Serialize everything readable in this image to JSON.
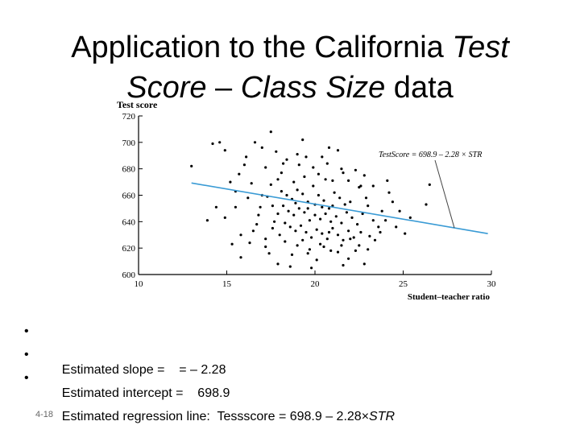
{
  "slide": {
    "title_part1": "Application to the California ",
    "title_italic1": "Test Score",
    "title_part2": " – ",
    "title_italic2": "Class Size",
    "title_part3": " data",
    "slide_number": "4-18"
  },
  "bullets": [
    {
      "marker": "•",
      "text": "Estimated slope =    = – 2.28"
    },
    {
      "marker": "•",
      "text": "Estimated intercept =    698.9"
    },
    {
      "marker": "•",
      "text": "Estimated regression line:  Tessscore = 698.9 – 2.28×",
      "italic": "STR"
    }
  ],
  "colors": {
    "regression_line": "#3a9bd5",
    "points": "#000000",
    "axis": "#000000",
    "annotation": "#444444"
  },
  "chart_data": {
    "type": "scatter",
    "xlabel": "Student–teacher ratio",
    "ylabel": "Test score",
    "xlim": [
      10,
      30
    ],
    "ylim": [
      600,
      720
    ],
    "xticks": [
      10,
      15,
      20,
      25,
      30
    ],
    "yticks": [
      600,
      620,
      640,
      660,
      680,
      700,
      720
    ],
    "annotation": "TestScore = 698.9 – 2.28 × STR",
    "regression": {
      "intercept": 698.9,
      "slope": -2.28,
      "x_range": [
        13.0,
        29.8
      ]
    },
    "grid": false,
    "points": [
      [
        14.2,
        699
      ],
      [
        14.6,
        700
      ],
      [
        14.9,
        694
      ],
      [
        13.0,
        682
      ],
      [
        14.4,
        651
      ],
      [
        14.9,
        643
      ],
      [
        16.6,
        700
      ],
      [
        17.5,
        708
      ],
      [
        17.0,
        696
      ],
      [
        19.3,
        702
      ],
      [
        19.5,
        689
      ],
      [
        20.8,
        696
      ],
      [
        21.3,
        694
      ],
      [
        16.1,
        689
      ],
      [
        17.2,
        681
      ],
      [
        17.8,
        693
      ],
      [
        15.7,
        676
      ],
      [
        15.2,
        670
      ],
      [
        16.4,
        669
      ],
      [
        17.9,
        672
      ],
      [
        18.4,
        687
      ],
      [
        19.1,
        683
      ],
      [
        20.2,
        676
      ],
      [
        21.6,
        677
      ],
      [
        22.6,
        667
      ],
      [
        23.3,
        667
      ],
      [
        24.1,
        671
      ],
      [
        15.5,
        663
      ],
      [
        16.2,
        658
      ],
      [
        16.9,
        651
      ],
      [
        15.5,
        651
      ],
      [
        15.8,
        630
      ],
      [
        15.3,
        623
      ],
      [
        15.8,
        613
      ],
      [
        16.7,
        638
      ],
      [
        13.9,
        641
      ],
      [
        17.2,
        627
      ],
      [
        17.4,
        616
      ],
      [
        17.9,
        608
      ],
      [
        18.6,
        606
      ],
      [
        19.6,
        616
      ],
      [
        20.1,
        611
      ],
      [
        19.8,
        605
      ],
      [
        20.5,
        621
      ],
      [
        21.3,
        617
      ],
      [
        21.6,
        607
      ],
      [
        22.0,
        627
      ],
      [
        23.1,
        629
      ],
      [
        23.7,
        632
      ],
      [
        24.0,
        641
      ],
      [
        24.8,
        648
      ],
      [
        25.4,
        643
      ],
      [
        25.1,
        631
      ],
      [
        26.3,
        653
      ],
      [
        26.5,
        668
      ],
      [
        22.8,
        608
      ],
      [
        18.1,
        663
      ],
      [
        18.4,
        660
      ],
      [
        18.7,
        657
      ],
      [
        19.0,
        664
      ],
      [
        19.3,
        661
      ],
      [
        19.6,
        655
      ],
      [
        19.9,
        667
      ],
      [
        20.2,
        660
      ],
      [
        20.5,
        656
      ],
      [
        20.8,
        650
      ],
      [
        21.1,
        662
      ],
      [
        21.4,
        658
      ],
      [
        21.7,
        653
      ],
      [
        18.2,
        652
      ],
      [
        18.5,
        648
      ],
      [
        18.8,
        645
      ],
      [
        19.1,
        650
      ],
      [
        19.4,
        647
      ],
      [
        19.7,
        641
      ],
      [
        20.0,
        645
      ],
      [
        20.3,
        642
      ],
      [
        20.6,
        646
      ],
      [
        20.9,
        640
      ],
      [
        21.2,
        644
      ],
      [
        21.5,
        639
      ],
      [
        21.8,
        647
      ],
      [
        22.1,
        643
      ],
      [
        22.4,
        638
      ],
      [
        18.3,
        639
      ],
      [
        18.6,
        636
      ],
      [
        18.9,
        633
      ],
      [
        19.2,
        637
      ],
      [
        19.5,
        632
      ],
      [
        19.8,
        628
      ],
      [
        20.1,
        634
      ],
      [
        20.4,
        631
      ],
      [
        20.7,
        627
      ],
      [
        21.0,
        635
      ],
      [
        21.3,
        630
      ],
      [
        21.6,
        626
      ],
      [
        21.9,
        633
      ],
      [
        22.2,
        628
      ],
      [
        22.5,
        622
      ],
      [
        17.9,
        646
      ],
      [
        17.6,
        652
      ],
      [
        17.3,
        659
      ],
      [
        18.0,
        630
      ],
      [
        18.3,
        625
      ],
      [
        19.0,
        622
      ],
      [
        19.7,
        619
      ],
      [
        20.3,
        623
      ],
      [
        20.9,
        618
      ],
      [
        21.5,
        622
      ],
      [
        22.3,
        618
      ],
      [
        22.7,
        646
      ],
      [
        23.0,
        652
      ],
      [
        23.3,
        641
      ],
      [
        23.6,
        636
      ],
      [
        22.9,
        658
      ],
      [
        22.5,
        666
      ],
      [
        21.9,
        671
      ],
      [
        20.6,
        672
      ],
      [
        19.4,
        674
      ],
      [
        18.8,
        670
      ],
      [
        18.1,
        677
      ],
      [
        19.9,
        681
      ],
      [
        20.7,
        684
      ],
      [
        21.5,
        680
      ],
      [
        22.3,
        679
      ],
      [
        17.5,
        668
      ],
      [
        17.0,
        660
      ],
      [
        16.8,
        645
      ],
      [
        16.5,
        633
      ],
      [
        17.7,
        640
      ],
      [
        22.0,
        655
      ],
      [
        23.8,
        648
      ],
      [
        24.4,
        655
      ],
      [
        20.0,
        653
      ],
      [
        19.6,
        650
      ],
      [
        20.4,
        651
      ],
      [
        18.9,
        654
      ],
      [
        21.0,
        652
      ],
      [
        22.6,
        632
      ],
      [
        23.4,
        626
      ],
      [
        17.2,
        621
      ],
      [
        16.3,
        624
      ],
      [
        18.7,
        615
      ],
      [
        21.9,
        612
      ],
      [
        23.0,
        619
      ],
      [
        24.6,
        636
      ],
      [
        19.0,
        691
      ],
      [
        18.2,
        684
      ],
      [
        20.4,
        689
      ],
      [
        21.0,
        671
      ],
      [
        16.0,
        683
      ],
      [
        22.8,
        675
      ],
      [
        17.6,
        635
      ],
      [
        24.2,
        662
      ],
      [
        19.3,
        626
      ],
      [
        20.8,
        632
      ]
    ]
  }
}
